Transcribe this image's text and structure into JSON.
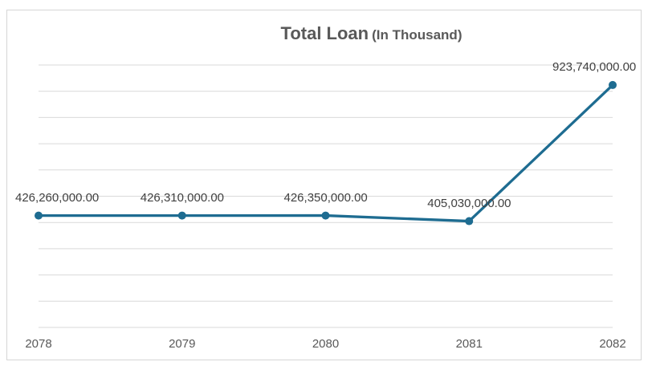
{
  "chart": {
    "title": "Total Loan",
    "title_suffix": "(In Thousand)",
    "line_color": "#1e6c91",
    "marker_color": "#1e6c91",
    "gridline_color": "#d9d9d9",
    "border_color": "#d6d6d6",
    "title_color": "#595959",
    "data_label_color": "#404040",
    "axis_label_color": "#595959",
    "background_color": "#ffffff"
  },
  "chart_data": {
    "type": "line",
    "title": "Total Loan (In Thousand)",
    "categories": [
      "2078",
      "2079",
      "2080",
      "2081",
      "2082"
    ],
    "series": [
      {
        "name": "Total Loan",
        "values": [
          426260000,
          426310000,
          426350000,
          405030000,
          923740000
        ],
        "labels": [
          "426,260,000.00",
          "426,310,000.00",
          "426,350,000.00",
          "405,030,000.00",
          "923,740,000.00"
        ]
      }
    ],
    "xlabel": "",
    "ylabel": "",
    "ylim": [
      0,
      1000000000
    ],
    "y_gridline_step": 100000000,
    "grid": true,
    "legend": "none",
    "y_axis_tick_labels_visible": false,
    "data_labels_visible": true,
    "markers": true
  }
}
